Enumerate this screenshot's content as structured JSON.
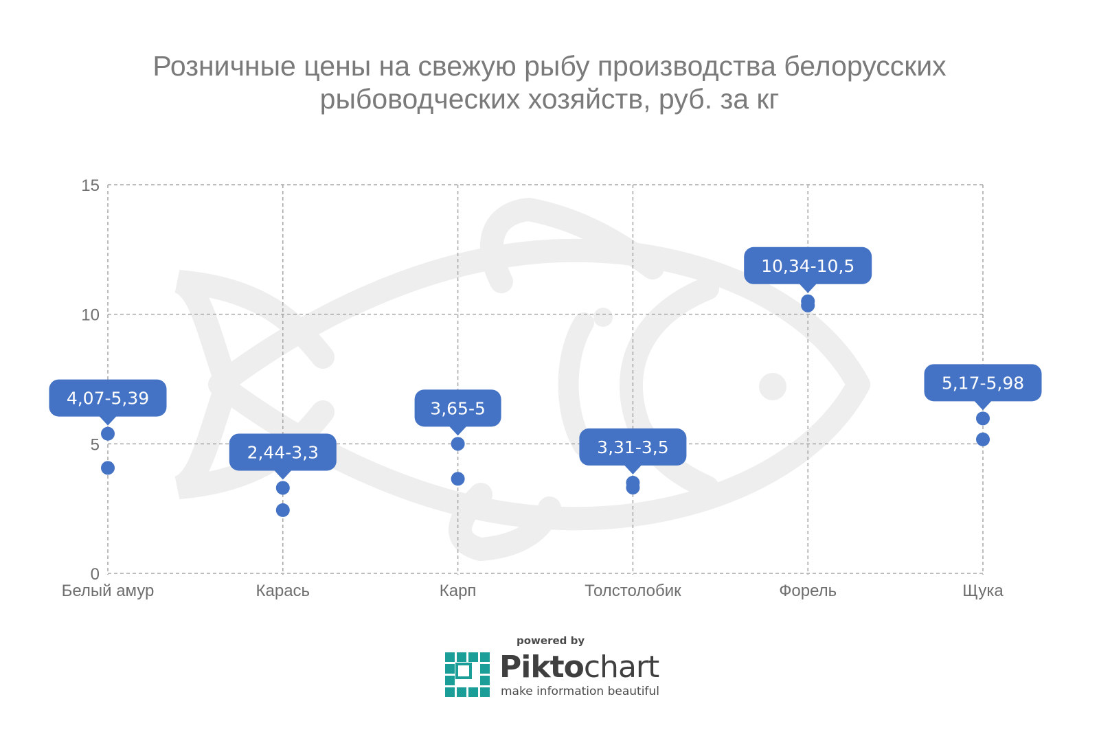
{
  "title_lines": [
    "Розничные цены на свежую рыбу производства белорусских",
    "рыбоводческих хозяйств, руб. за кг"
  ],
  "colors": {
    "marker": "#4472c4",
    "bubble": "#4472c4",
    "grid": "#a6a6a6",
    "title": "#7a7a7a",
    "watermark": "#eeeeee"
  },
  "watermark_icon": "fish-icon",
  "chart_data": {
    "type": "scatter",
    "title": "Розничные цены на свежую рыбу производства белорусских рыбоводческих хозяйств, руб. за кг",
    "xlabel": "",
    "ylabel": "",
    "ylim": [
      0,
      15
    ],
    "yticks": [
      0,
      5,
      10,
      15
    ],
    "ytick_labels": [
      "0",
      "5",
      "10",
      "15"
    ],
    "grid": true,
    "categories": [
      "Белый амур",
      "Карась",
      "Карп",
      "Толстолобик",
      "Форель",
      "Щука"
    ],
    "series": [
      {
        "values": [
          4.07,
          2.44,
          3.65,
          3.31,
          10.34,
          5.17
        ]
      },
      {
        "values": [
          5.39,
          3.3,
          5,
          3.5,
          10.5,
          5.98
        ]
      }
    ],
    "data_labels": [
      "4,07-5,39",
      "2,44-3,3",
      "3,65-5",
      "3,31-3,5",
      "10,34-10,5",
      "5,17-5,98"
    ]
  },
  "footer": {
    "powered_by": "powered by",
    "brand_bold": "Pikto",
    "brand_light": "chart",
    "tagline": "make information beautiful",
    "logo_icon": "piktochart-logo-icon"
  }
}
